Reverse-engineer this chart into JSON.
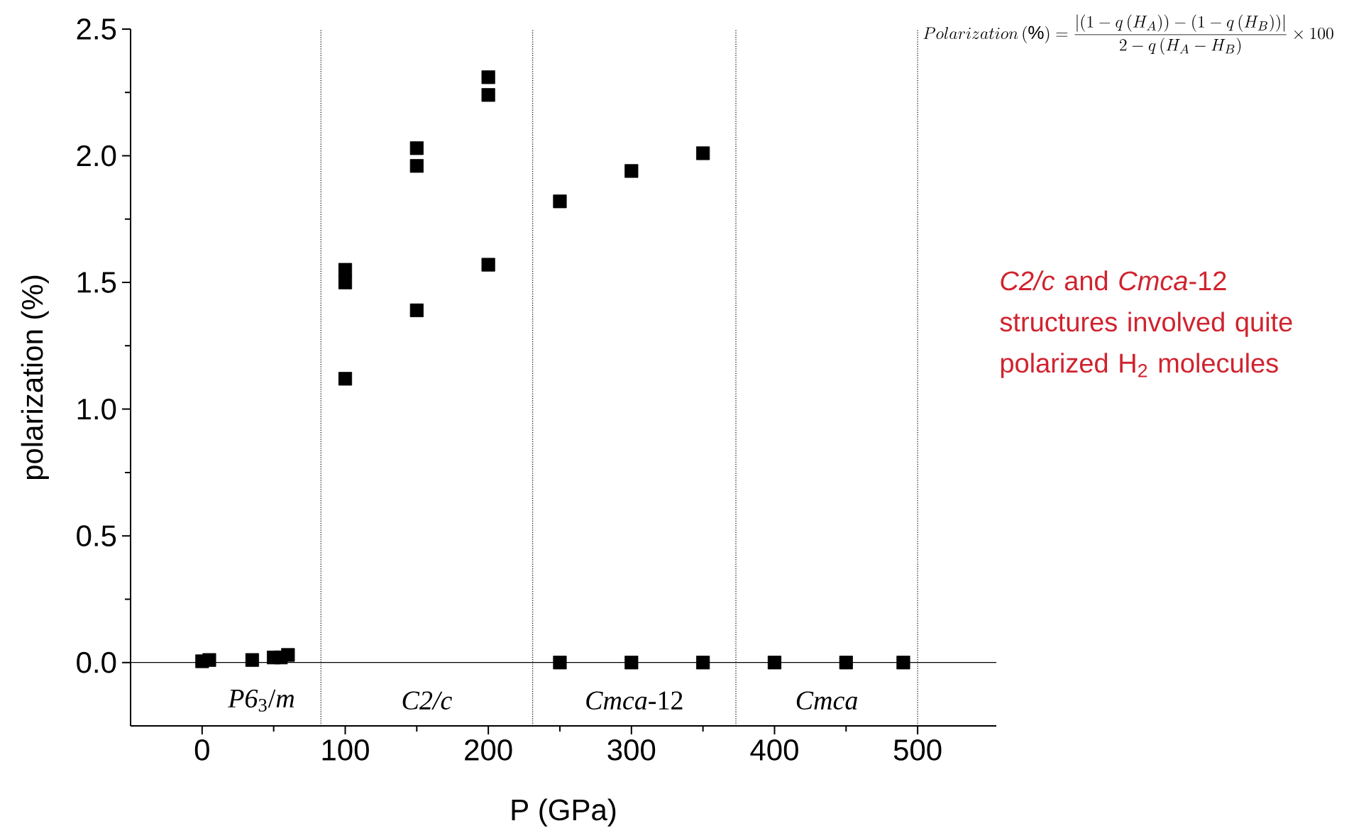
{
  "chart_data": {
    "type": "scatter",
    "xlabel": "P (GPa)",
    "ylabel": "polarization (%)",
    "xlim": [
      -50,
      555
    ],
    "ylim": [
      -0.25,
      2.5
    ],
    "xticks": [
      0,
      100,
      200,
      300,
      400,
      500
    ],
    "yticks": [
      {
        "value": 0,
        "label": "0.0"
      },
      0.5,
      {
        "value": 1,
        "label": "1.0"
      },
      1.5,
      {
        "value": 2,
        "label": "2.0"
      },
      2.5
    ],
    "series": [
      {
        "color": "#000000",
        "x": [
          0,
          5,
          35,
          50,
          55,
          60,
          100,
          100,
          100,
          150,
          150,
          150,
          200,
          200,
          200,
          250,
          300,
          350,
          250,
          300,
          350,
          400,
          450,
          490
        ],
        "values": [
          0.005,
          0.01,
          0.01,
          0.02,
          0.02,
          0.03,
          1.55,
          1.5,
          1.12,
          2.03,
          1.96,
          1.39,
          2.31,
          2.24,
          1.57,
          1.82,
          1.94,
          2.01,
          0,
          0,
          0,
          0,
          0,
          0
        ]
      }
    ],
    "marker": "square",
    "grid": false,
    "legend": false,
    "ref_lines": [
      {
        "axis": "y",
        "value": 0,
        "line_style": "solid"
      },
      {
        "axis": "x",
        "value": 83,
        "line_style": "dotted"
      },
      {
        "axis": "x",
        "value": 231,
        "line_style": "dotted"
      },
      {
        "axis": "x",
        "value": 373,
        "line_style": "dotted"
      },
      {
        "axis": "x",
        "value": 500,
        "line_style": "dotted"
      }
    ],
    "annotations": [
      "*P6*$_{3}$/*m*",
      "*C2/c*",
      "*Cmca*-12",
      "*Cmca*",
      "Polarization\\,(\\%) = \\frac{\\left|\\left(1-q\\left(H_{A}\\right)\\right)-\\left(1-q\\left(H_{B}\\right)\\right)\\right|}{2-q\\left(H_{A}-H_{B}\\right)}\\times 100",
      "*C2/c* and *Cmca*-12 structures involved quite polarized H$_{2}$ molecules"
    ]
  }
}
